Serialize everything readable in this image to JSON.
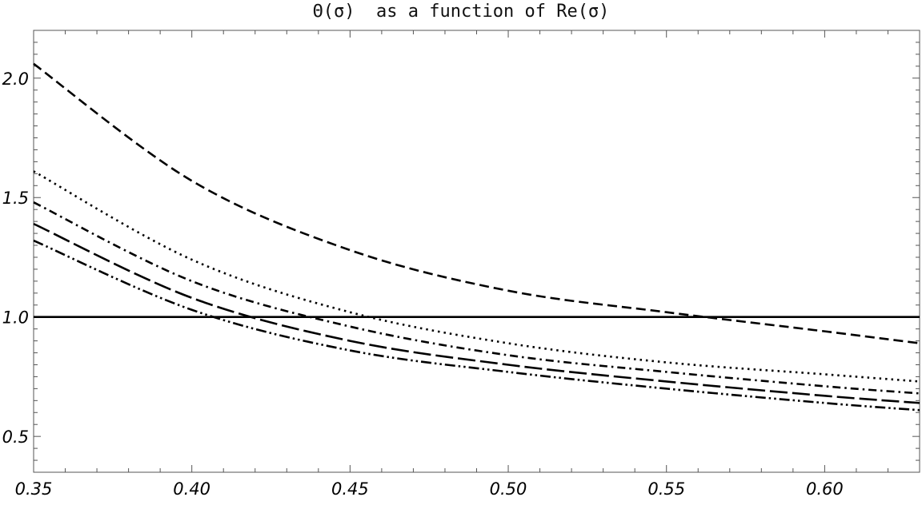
{
  "chart_data": {
    "type": "line",
    "title": "Θ(σ)  as a function of Re(σ)",
    "xlabel": "",
    "ylabel": "",
    "xlim": [
      0.35,
      0.63
    ],
    "ylim": [
      0.35,
      2.2
    ],
    "grid": false,
    "legend": "none",
    "x_ticks": [
      "0.35",
      "0.40",
      "0.45",
      "0.50",
      "0.55",
      "0.60"
    ],
    "y_ticks": [
      "0.5",
      "1.0",
      "1.5",
      "2.0"
    ],
    "x": [
      0.35,
      0.4,
      0.45,
      0.5,
      0.55,
      0.6,
      0.63
    ],
    "series": [
      {
        "style": "dashed",
        "values": [
          2.06,
          1.57,
          1.28,
          1.11,
          1.02,
          0.94,
          0.89
        ]
      },
      {
        "style": "dotted",
        "values": [
          1.61,
          1.24,
          1.02,
          0.89,
          0.81,
          0.76,
          0.73
        ]
      },
      {
        "style": "dash-dot",
        "values": [
          1.48,
          1.15,
          0.96,
          0.84,
          0.77,
          0.71,
          0.68
        ]
      },
      {
        "style": "long-dash",
        "values": [
          1.39,
          1.08,
          0.9,
          0.8,
          0.73,
          0.67,
          0.64
        ]
      },
      {
        "style": "dash-dot-dot",
        "values": [
          1.32,
          1.03,
          0.86,
          0.77,
          0.7,
          0.64,
          0.61
        ]
      },
      {
        "style": "solid",
        "values": [
          1.0,
          1.0,
          1.0,
          1.0,
          1.0,
          1.0,
          1.0
        ]
      }
    ],
    "colors": {
      "lines": "#000000",
      "frame": "#555555"
    }
  }
}
